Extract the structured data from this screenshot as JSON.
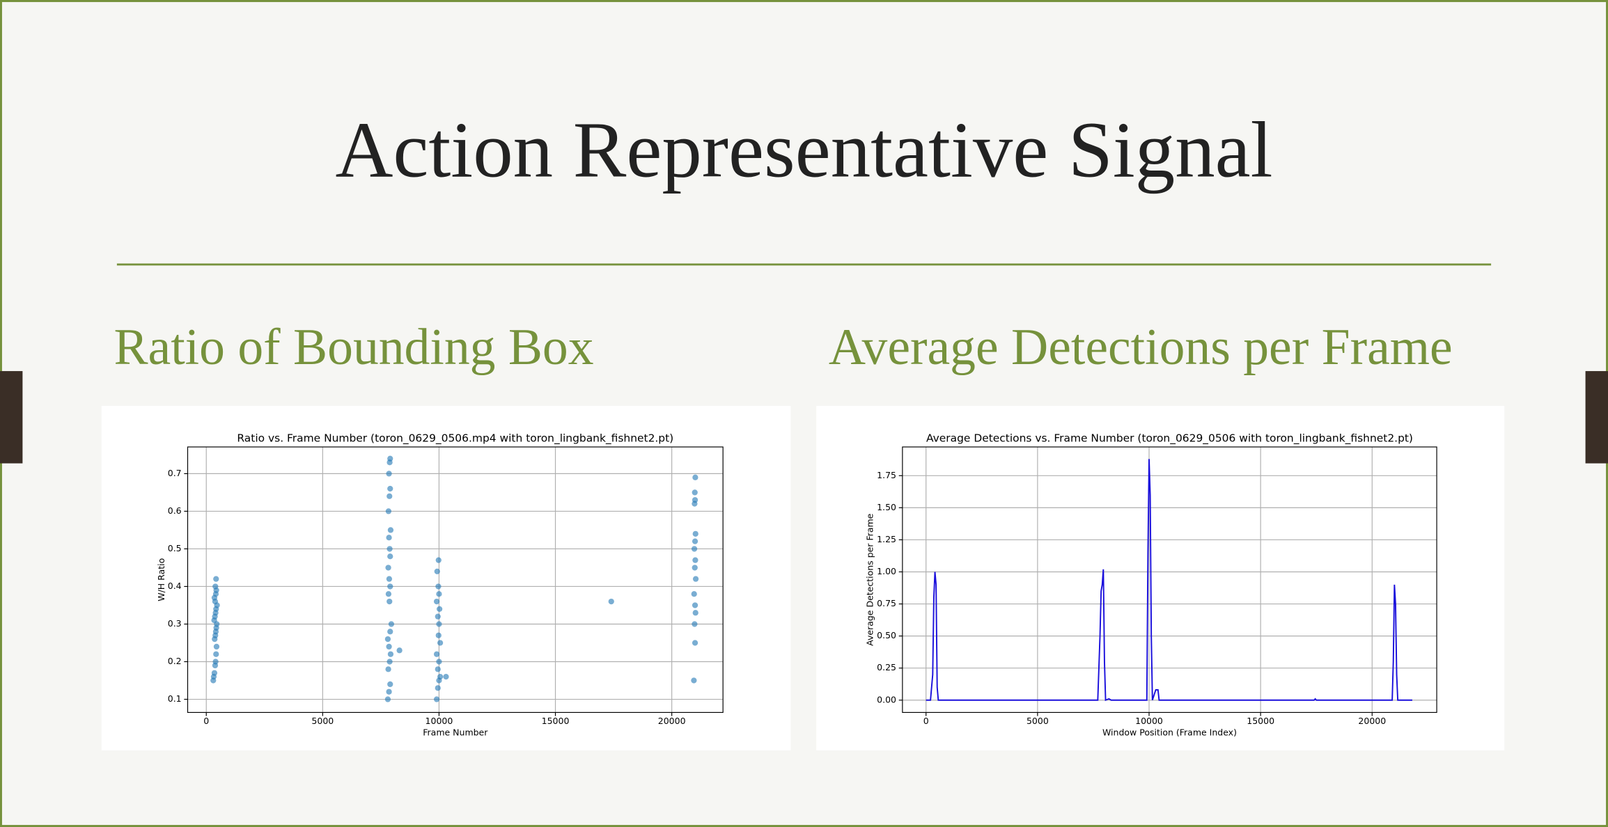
{
  "slide": {
    "title": "Action Representative Signal",
    "left_heading": "Ratio of Bounding Box",
    "right_heading": "Average Detections per Frame"
  },
  "chart_data": [
    {
      "type": "scatter",
      "title": "Ratio vs. Frame Number (toron_0629_0506.mp4 with toron_lingbank_fishnet2.pt)",
      "x_label": "Frame Number",
      "y_label": "W/H Ratio",
      "color": "#1f77b4",
      "grid": true,
      "xlim": [
        -800,
        22200
      ],
      "ylim": [
        0.065,
        0.771
      ],
      "xticks": [
        0,
        5000,
        10000,
        15000,
        20000
      ],
      "yticks": [
        0.1,
        0.2,
        0.3,
        0.4,
        0.5,
        0.6,
        0.7
      ],
      "x": [
        300,
        320,
        350,
        380,
        400,
        420,
        440,
        360,
        390,
        410,
        430,
        450,
        340,
        370,
        400,
        420,
        460,
        380,
        350,
        410,
        430,
        390,
        420,
        7800,
        7850,
        7900,
        7820,
        7880,
        7920,
        7850,
        7800,
        7900,
        7950,
        7870,
        7830,
        7900,
        7860,
        7820,
        7900,
        7880,
        7850,
        7920,
        7830,
        7870,
        7900,
        7850,
        7880,
        7900,
        8300,
        9900,
        9950,
        10000,
        10050,
        9950,
        10000,
        9900,
        10050,
        9980,
        10000,
        9950,
        10020,
        9900,
        10000,
        9970,
        9920,
        9980,
        10300,
        17400,
        20950,
        21000,
        20980,
        21020,
        21000,
        20960,
        21030,
        20990,
        21010,
        20970,
        21000,
        21020,
        20980,
        21000,
        20990,
        21010
      ],
      "y": [
        0.15,
        0.16,
        0.17,
        0.19,
        0.2,
        0.22,
        0.24,
        0.26,
        0.27,
        0.28,
        0.29,
        0.3,
        0.31,
        0.32,
        0.33,
        0.34,
        0.35,
        0.36,
        0.37,
        0.38,
        0.39,
        0.4,
        0.42,
        0.1,
        0.12,
        0.14,
        0.18,
        0.2,
        0.22,
        0.24,
        0.26,
        0.28,
        0.3,
        0.36,
        0.38,
        0.4,
        0.42,
        0.45,
        0.48,
        0.5,
        0.53,
        0.55,
        0.6,
        0.64,
        0.66,
        0.7,
        0.73,
        0.74,
        0.23,
        0.1,
        0.13,
        0.15,
        0.16,
        0.18,
        0.2,
        0.22,
        0.25,
        0.27,
        0.3,
        0.32,
        0.34,
        0.36,
        0.38,
        0.4,
        0.44,
        0.47,
        0.16,
        0.36,
        0.15,
        0.25,
        0.3,
        0.33,
        0.35,
        0.38,
        0.42,
        0.45,
        0.47,
        0.5,
        0.52,
        0.54,
        0.62,
        0.63,
        0.65,
        0.69
      ]
    },
    {
      "type": "line",
      "title": "Average Detections vs. Frame Number (toron_0629_0506 with toron_lingbank_fishnet2.pt)",
      "x_label": "Window Position (Frame Index)",
      "y_label": "Average Detections per Frame",
      "color": "#1a0fdc",
      "grid": true,
      "xlim": [
        -1057,
        22897
      ],
      "ylim": [
        -0.096,
        1.974
      ],
      "xticks": [
        0,
        5000,
        10000,
        15000,
        20000
      ],
      "yticks": [
        {
          "value": 0,
          "label": "0.00"
        },
        0.25,
        {
          "value": 0.5,
          "label": "0.50"
        },
        0.75,
        {
          "value": 1,
          "label": "1.00"
        },
        1.25,
        {
          "value": 1.5,
          "label": "1.50"
        },
        1.75
      ],
      "x": [
        0,
        200,
        300,
        350,
        400,
        450,
        500,
        550,
        7700,
        7800,
        7850,
        7900,
        7950,
        8000,
        8050,
        8200,
        8300,
        9900,
        9950,
        10000,
        10050,
        10100,
        10150,
        10300,
        10400,
        10450,
        17400,
        17450,
        17500,
        20900,
        20950,
        21000,
        21050,
        21100,
        21150,
        21800
      ],
      "values": [
        0,
        0,
        0.2,
        0.8,
        1.0,
        0.9,
        0.1,
        0,
        0,
        0.5,
        0.85,
        0.9,
        1.02,
        0.3,
        0,
        0.01,
        0,
        0,
        1.15,
        1.88,
        1.6,
        0.5,
        0,
        0.08,
        0.08,
        0,
        0,
        0.01,
        0,
        0,
        0.3,
        0.9,
        0.75,
        0.2,
        0,
        0
      ]
    }
  ]
}
